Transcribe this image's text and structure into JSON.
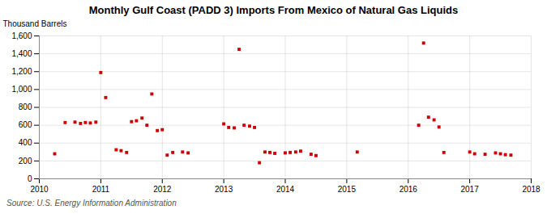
{
  "chart_data": {
    "type": "scatter",
    "title": "Monthly Gulf Coast (PADD 3) Imports From Mexico of Natural Gas Liquids",
    "ylabel": "Thousand Barrels",
    "source": "Source: U.S. Energy Information Administration",
    "color": "#cc0000",
    "marker": "square",
    "grid": true,
    "xlim": [
      2010.0,
      2018.0
    ],
    "xticks": [
      2010,
      2011,
      2012,
      2013,
      2014,
      2015,
      2016,
      2017,
      2018
    ],
    "ylim": [
      0,
      1600
    ],
    "yticks": [
      0,
      200,
      400,
      600,
      800,
      {
        "value": 1000,
        "label": "1,000"
      },
      {
        "value": 1200,
        "label": "1,200"
      },
      {
        "value": 1400,
        "label": "1,400"
      },
      {
        "value": 1600,
        "label": "1,600"
      }
    ],
    "x": [
      2010.25,
      2010.42,
      2010.58,
      2010.67,
      2010.75,
      2010.83,
      2010.92,
      2011.0,
      2011.08,
      2011.25,
      2011.33,
      2011.42,
      2011.5,
      2011.58,
      2011.67,
      2011.75,
      2011.83,
      2011.92,
      2012.0,
      2012.08,
      2012.17,
      2012.33,
      2012.42,
      2013.0,
      2013.08,
      2013.17,
      2013.25,
      2013.33,
      2013.42,
      2013.5,
      2013.58,
      2013.67,
      2013.75,
      2013.83,
      2014.0,
      2014.08,
      2014.17,
      2014.25,
      2014.42,
      2014.5,
      2015.17,
      2016.17,
      2016.25,
      2016.33,
      2016.42,
      2016.5,
      2016.58,
      2017.0,
      2017.08,
      2017.25,
      2017.42,
      2017.5,
      2017.58,
      2017.67
    ],
    "values": [
      280,
      630,
      635,
      620,
      630,
      625,
      635,
      1190,
      910,
      325,
      315,
      295,
      640,
      650,
      680,
      600,
      950,
      540,
      550,
      265,
      295,
      300,
      290,
      615,
      575,
      570,
      1450,
      600,
      590,
      575,
      180,
      300,
      295,
      285,
      290,
      295,
      300,
      310,
      275,
      260,
      300,
      600,
      1520,
      690,
      660,
      580,
      295,
      300,
      280,
      275,
      290,
      280,
      270,
      265
    ]
  }
}
